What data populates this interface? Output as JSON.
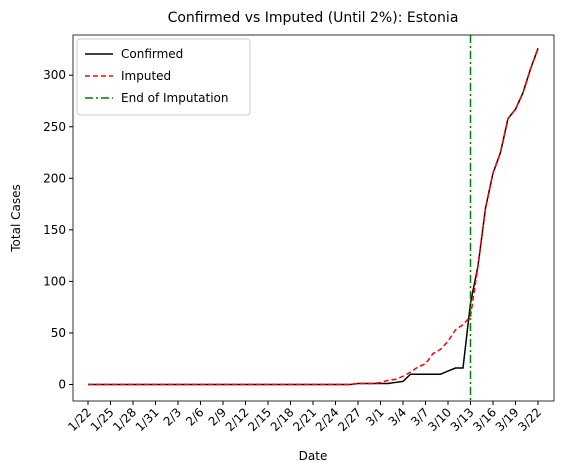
{
  "chart_data": {
    "type": "line",
    "title": "Confirmed vs Imputed (Until 2%): Estonia",
    "x_label": "Date",
    "y_label": "Total Cases",
    "categories": [
      "1/22",
      null,
      null,
      "1/25",
      null,
      null,
      "1/28",
      null,
      null,
      "1/31",
      null,
      null,
      "2/3",
      null,
      null,
      "2/6",
      null,
      null,
      "2/9",
      null,
      null,
      "2/12",
      null,
      null,
      "2/15",
      null,
      null,
      "2/18",
      null,
      null,
      "2/21",
      null,
      null,
      "2/24",
      null,
      null,
      "2/27",
      null,
      null,
      "3/1",
      null,
      null,
      "3/4",
      null,
      null,
      "3/7",
      null,
      null,
      "3/10",
      null,
      null,
      "3/13",
      null,
      null,
      "3/16",
      null,
      null,
      "3/19",
      null,
      null,
      "3/22"
    ],
    "series": [
      {
        "name": "Confirmed",
        "color": "#000000",
        "dash": "solid",
        "values": [
          0,
          0,
          0,
          0,
          0,
          0,
          0,
          0,
          0,
          0,
          0,
          0,
          0,
          0,
          0,
          0,
          0,
          0,
          0,
          0,
          0,
          0,
          0,
          0,
          0,
          0,
          0,
          0,
          0,
          0,
          0,
          0,
          0,
          0,
          0,
          0,
          1,
          1,
          1,
          1,
          1,
          2,
          3,
          10,
          10,
          10,
          10,
          10,
          13,
          16,
          16,
          79,
          115,
          171,
          205,
          225,
          258,
          267,
          283,
          306,
          326
        ]
      },
      {
        "name": "Imputed",
        "color": "#ff0000",
        "dash": "dashed",
        "values": [
          0,
          0,
          0,
          0,
          0,
          0,
          0,
          0,
          0,
          0,
          0,
          0,
          0,
          0,
          0,
          0,
          0,
          0,
          0,
          0,
          0,
          0,
          0,
          0,
          0,
          0,
          0,
          0,
          0,
          0,
          0,
          0,
          0,
          0,
          0,
          0,
          1,
          1,
          1,
          2,
          4,
          5,
          8,
          12,
          17,
          20,
          30,
          34,
          42,
          53,
          58,
          66,
          115,
          171,
          205,
          225,
          258,
          267,
          283,
          306,
          326
        ]
      }
    ],
    "vline": {
      "name": "End of Imputation",
      "color": "#008000",
      "x": "3/13"
    },
    "ylim": [
      -16,
      339
    ],
    "yticks": [
      0,
      50,
      100,
      150,
      200,
      250,
      300
    ],
    "legend": "upper left"
  }
}
